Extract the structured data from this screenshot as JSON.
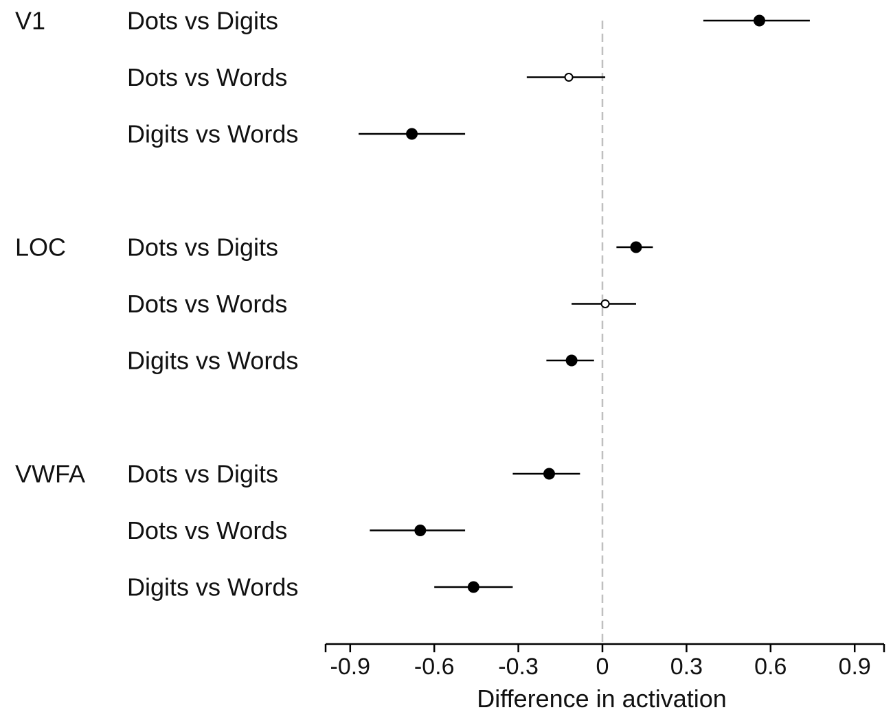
{
  "chart_data": {
    "type": "scatter",
    "subtype": "forest-plot",
    "title": "",
    "xlabel": "Difference in activation",
    "xlim": [
      -1.0,
      1.0
    ],
    "xticks": [
      "-0.9",
      "-0.6",
      "-0.3",
      "0",
      "0.3",
      "0.6",
      "0.9"
    ],
    "xtick_values": [
      -0.9,
      -0.6,
      -0.3,
      0,
      0.3,
      0.6,
      0.9
    ],
    "reference_line_x": 0,
    "grid": false,
    "groups": [
      {
        "region": "V1",
        "rows": [
          {
            "label": "Dots vs Digits",
            "estimate": 0.56,
            "ci_low": 0.36,
            "ci_high": 0.74,
            "significant": true
          },
          {
            "label": "Dots vs Words",
            "estimate": -0.12,
            "ci_low": -0.27,
            "ci_high": 0.01,
            "significant": false
          },
          {
            "label": "Digits vs Words",
            "estimate": -0.68,
            "ci_low": -0.87,
            "ci_high": -0.49,
            "significant": true
          }
        ]
      },
      {
        "region": "LOC",
        "rows": [
          {
            "label": "Dots vs Digits",
            "estimate": 0.12,
            "ci_low": 0.05,
            "ci_high": 0.18,
            "significant": true
          },
          {
            "label": "Dots vs Words",
            "estimate": 0.01,
            "ci_low": -0.11,
            "ci_high": 0.12,
            "significant": false
          },
          {
            "label": "Digits vs Words",
            "estimate": -0.11,
            "ci_low": -0.2,
            "ci_high": -0.03,
            "significant": true
          }
        ]
      },
      {
        "region": "VWFA",
        "rows": [
          {
            "label": "Dots vs Digits",
            "estimate": -0.19,
            "ci_low": -0.32,
            "ci_high": -0.08,
            "significant": true
          },
          {
            "label": "Dots vs Words",
            "estimate": -0.65,
            "ci_low": -0.83,
            "ci_high": -0.49,
            "significant": true
          },
          {
            "label": "Digits vs Words",
            "estimate": -0.46,
            "ci_low": -0.6,
            "ci_high": -0.32,
            "significant": true
          }
        ]
      }
    ],
    "colors": {
      "marker": "#000000",
      "open_marker_fill": "#ffffff",
      "ci_line": "#000000",
      "reference_line": "#bfbfbf",
      "axis": "#000000"
    }
  }
}
